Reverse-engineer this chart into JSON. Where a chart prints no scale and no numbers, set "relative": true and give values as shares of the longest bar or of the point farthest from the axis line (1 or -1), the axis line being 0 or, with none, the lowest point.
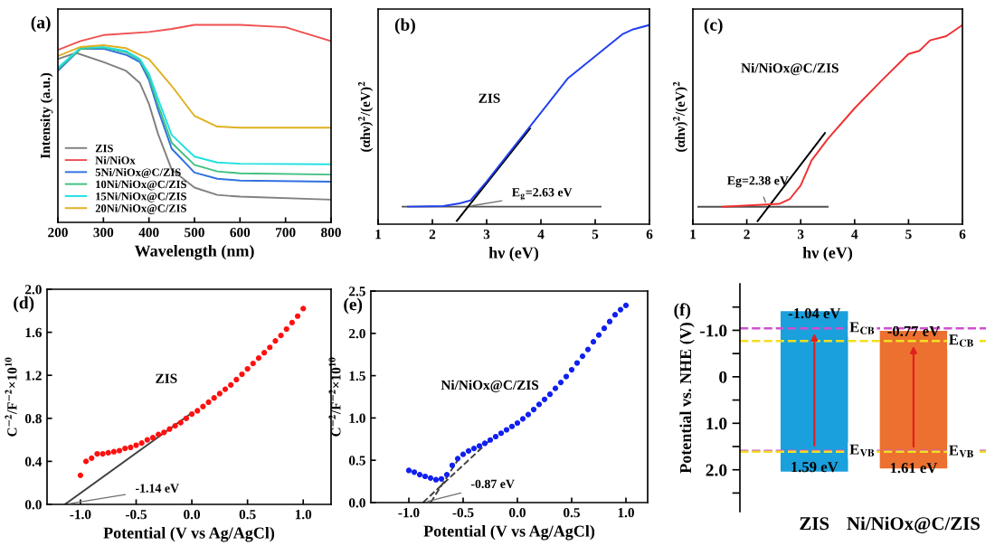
{
  "chart_data": [
    {
      "type": "line",
      "relative": true,
      "xlabel": "Wavelength (nm)",
      "ylabel": "Intensity (a.u.)",
      "xlim": [
        200,
        800
      ],
      "xticks": [
        200,
        300,
        400,
        500,
        600,
        700,
        800
      ],
      "legend": "bottom left",
      "annotations": [
        "(a)"
      ],
      "series": [
        {
          "name": "ZIS",
          "color": "#808080",
          "x": [
            200,
            240,
            300,
            350,
            380,
            400,
            420,
            450,
            500,
            550,
            600,
            800
          ],
          "values": [
            0.827,
            0.858,
            0.812,
            0.767,
            0.706,
            0.6,
            0.448,
            0.267,
            0.176,
            0.139,
            0.13,
            0.115
          ]
        },
        {
          "name": "Ni/NiOx",
          "color": "#f05050",
          "x": [
            200,
            250,
            300,
            400,
            450,
            500,
            600,
            700,
            800
          ],
          "values": [
            0.873,
            0.918,
            0.948,
            0.964,
            0.979,
            1.0,
            1.0,
            0.988,
            0.918
          ]
        },
        {
          "name": "5Ni/NiOx@C/ZIS",
          "color": "#3070e0",
          "x": [
            200,
            250,
            300,
            350,
            380,
            400,
            420,
            450,
            500,
            550,
            600,
            800
          ],
          "values": [
            0.767,
            0.879,
            0.879,
            0.848,
            0.812,
            0.721,
            0.57,
            0.373,
            0.252,
            0.221,
            0.212,
            0.206
          ]
        },
        {
          "name": "10Ni/NiOx@C/ZIS",
          "color": "#40c080",
          "x": [
            200,
            250,
            300,
            350,
            380,
            400,
            420,
            450,
            500,
            550,
            600,
            800
          ],
          "values": [
            0.776,
            0.879,
            0.885,
            0.861,
            0.821,
            0.736,
            0.594,
            0.403,
            0.291,
            0.258,
            0.248,
            0.242
          ]
        },
        {
          "name": "15Ni/NiOx@C/ZIS",
          "color": "#20e0e0",
          "x": [
            200,
            250,
            300,
            350,
            380,
            400,
            420,
            450,
            500,
            550,
            600,
            800
          ],
          "values": [
            0.782,
            0.885,
            0.888,
            0.867,
            0.827,
            0.752,
            0.624,
            0.442,
            0.333,
            0.303,
            0.297,
            0.294
          ]
        },
        {
          "name": "20Ni/NiOx@C/ZIS",
          "color": "#e0b020",
          "x": [
            200,
            250,
            300,
            350,
            400,
            450,
            500,
            550,
            600,
            800
          ],
          "values": [
            0.842,
            0.888,
            0.897,
            0.882,
            0.827,
            0.691,
            0.539,
            0.485,
            0.479,
            0.479
          ]
        }
      ]
    },
    {
      "type": "line",
      "relative": true,
      "xlabel": "hν (eV)",
      "ylabel": "(αhν)$^{2}$/(eV)$^{2}$",
      "xlim": [
        1,
        6
      ],
      "xticks": [
        1,
        2,
        3,
        4,
        5,
        6
      ],
      "annotations": [
        "(b)",
        "ZIS",
        {
          "text": "E$_{g}$=2.63 eV",
          "x": 2.63,
          "y": 0.088
        }
      ],
      "series": [
        {
          "color": "#505050",
          "x": [
            1.45,
            5.1
          ],
          "values": [
            0.088,
            0.088
          ]
        },
        {
          "color": "#000000",
          "x": [
            2.45,
            3.8
          ],
          "values": [
            0.016,
            0.48
          ]
        },
        {
          "color": "#2040f0",
          "x": [
            1.55,
            2.2,
            2.5,
            2.7,
            3.0,
            3.5,
            4.0,
            4.5,
            5.0,
            5.5,
            5.7,
            6.0
          ],
          "values": [
            0.088,
            0.091,
            0.104,
            0.119,
            0.214,
            0.387,
            0.56,
            0.733,
            0.843,
            0.953,
            0.978,
            1.0
          ]
        }
      ]
    },
    {
      "type": "line",
      "relative": true,
      "xlabel": "hν (eV)",
      "ylabel": "(αhν)$^{2}$/(eV)$^{2}$",
      "xlim": [
        1,
        6
      ],
      "xticks": [
        1,
        2,
        3,
        4,
        5,
        6
      ],
      "annotations": [
        "(c)",
        "Ni/NiOx@C/ZIS",
        {
          "text": "Eg=2.38 eV",
          "x": 2.38,
          "y": 0.087
        }
      ],
      "series": [
        {
          "color": "#505050",
          "x": [
            1.1,
            3.5
          ],
          "values": [
            0.087,
            0.087
          ]
        },
        {
          "color": "#000000",
          "x": [
            2.2,
            3.45
          ],
          "values": [
            0.015,
            0.458
          ]
        },
        {
          "color": "#f03030",
          "x": [
            1.55,
            2.2,
            2.6,
            2.8,
            3.0,
            3.2,
            3.5,
            4.0,
            4.5,
            5.0,
            5.2,
            5.4,
            5.7,
            6.0
          ],
          "values": [
            0.087,
            0.096,
            0.102,
            0.127,
            0.195,
            0.319,
            0.427,
            0.582,
            0.721,
            0.854,
            0.87,
            0.923,
            0.944,
            1.0
          ]
        }
      ]
    },
    {
      "type": "scatter",
      "marker": "circle",
      "xlabel": "Potential (V vs Ag/AgCl)",
      "ylabel": "C$^{−2}$/F$^{−2}$×10$^{10}$",
      "xlim": [
        -1.3,
        1.25
      ],
      "xticks": [
        {
          "value": -1.0,
          "label": "-1.0"
        },
        {
          "value": -0.5,
          "label": "-0.5"
        },
        {
          "value": 0,
          "label": "0.0"
        },
        {
          "value": 0.5,
          "label": "0.5"
        },
        {
          "value": 1.0,
          "label": "1.0"
        }
      ],
      "ylim": [
        0,
        2.0
      ],
      "yticks": [
        {
          "value": 0,
          "label": "0.0"
        },
        {
          "value": 0.4,
          "label": "0.4"
        },
        {
          "value": 0.8,
          "label": "0.8"
        },
        {
          "value": 1.2,
          "label": "1.2"
        },
        {
          "value": 1.6,
          "label": "1.6"
        },
        {
          "value": 2.0,
          "label": "2.0"
        }
      ],
      "annotations": [
        "(d)",
        "ZIS",
        {
          "text": "-1.14 eV",
          "x": -1.14,
          "y": 0
        }
      ],
      "series": [
        {
          "type": "line",
          "marker": "none",
          "color": "#404040",
          "x": [
            -1.14,
            0
          ],
          "values": [
            0,
            0.85
          ]
        },
        {
          "color": "#ff1010",
          "x": [
            -1.0,
            -0.95,
            -0.9,
            -0.85,
            -0.8,
            -0.75,
            -0.7,
            -0.65,
            -0.6,
            -0.55,
            -0.5,
            -0.45,
            -0.4,
            -0.35,
            -0.3,
            -0.25,
            -0.2,
            -0.15,
            -0.1,
            -0.05,
            0,
            0.05,
            0.1,
            0.15,
            0.2,
            0.25,
            0.3,
            0.35,
            0.4,
            0.45,
            0.5,
            0.55,
            0.6,
            0.65,
            0.7,
            0.75,
            0.8,
            0.85,
            0.9,
            0.95,
            1.0
          ],
          "values": [
            0.27,
            0.4,
            0.43,
            0.47,
            0.47,
            0.48,
            0.49,
            0.5,
            0.52,
            0.53,
            0.55,
            0.57,
            0.6,
            0.62,
            0.65,
            0.67,
            0.7,
            0.73,
            0.76,
            0.8,
            0.84,
            0.87,
            0.91,
            0.95,
            0.99,
            1.03,
            1.07,
            1.11,
            1.16,
            1.21,
            1.26,
            1.31,
            1.36,
            1.41,
            1.46,
            1.52,
            1.57,
            1.63,
            1.69,
            1.75,
            1.82
          ]
        }
      ]
    },
    {
      "type": "scatter",
      "marker": "circle",
      "xlabel": "Potential (V vs Ag/AgCl)",
      "ylabel": "C$^{−2}$/F$^{−2}$×10$^{10}$",
      "xlim": [
        -1.35,
        1.2
      ],
      "xticks": [
        {
          "value": -1.0,
          "label": "-1.0"
        },
        {
          "value": -0.5,
          "label": "-0.5"
        },
        {
          "value": 0,
          "label": "0.0"
        },
        {
          "value": 0.5,
          "label": "0.5"
        },
        {
          "value": 1.0,
          "label": "1.0"
        }
      ],
      "ylim": [
        0,
        2.5
      ],
      "yticks": [
        {
          "value": 0,
          "label": "0.0"
        },
        {
          "value": 0.5,
          "label": "0.5"
        },
        {
          "value": 1.0,
          "label": "1.0"
        },
        {
          "value": 1.5,
          "label": "1.5"
        },
        {
          "value": 2.0,
          "label": "2.0"
        },
        {
          "value": 2.5,
          "label": "2.5"
        }
      ],
      "annotations": [
        "(e)",
        "Ni/NiOx@C/ZIS",
        {
          "text": "-0.87 eV",
          "x": -0.87,
          "y": 0
        }
      ],
      "series": [
        {
          "type": "line",
          "marker": "none",
          "line_style": "dashed",
          "color": "#404040",
          "x": [
            -0.87,
            -0.25
          ],
          "values": [
            0,
            0.74
          ]
        },
        {
          "type": "line",
          "marker": "none",
          "line_style": "dashed",
          "color": "#404040",
          "x": [
            -0.8,
            -0.55
          ],
          "values": [
            0,
            0.5
          ]
        },
        {
          "color": "#1020f0",
          "x": [
            -1.0,
            -0.95,
            -0.9,
            -0.85,
            -0.8,
            -0.75,
            -0.7,
            -0.65,
            -0.6,
            -0.55,
            -0.5,
            -0.45,
            -0.4,
            -0.35,
            -0.3,
            -0.25,
            -0.2,
            -0.15,
            -0.1,
            -0.05,
            0,
            0.05,
            0.1,
            0.15,
            0.2,
            0.25,
            0.3,
            0.35,
            0.4,
            0.45,
            0.5,
            0.55,
            0.6,
            0.65,
            0.7,
            0.75,
            0.8,
            0.85,
            0.9,
            0.95,
            1.0
          ],
          "values": [
            0.38,
            0.36,
            0.33,
            0.31,
            0.29,
            0.27,
            0.28,
            0.33,
            0.44,
            0.52,
            0.57,
            0.61,
            0.64,
            0.67,
            0.7,
            0.74,
            0.78,
            0.82,
            0.86,
            0.9,
            0.94,
            0.99,
            1.04,
            1.1,
            1.16,
            1.22,
            1.28,
            1.35,
            1.42,
            1.49,
            1.57,
            1.65,
            1.73,
            1.81,
            1.9,
            1.98,
            2.06,
            2.14,
            2.22,
            2.28,
            2.33
          ]
        }
      ]
    },
    {
      "type": "bar",
      "categories": [
        "ZIS",
        "Ni/NiOx@C/ZIS"
      ],
      "base": [
        -1.41,
        -0.99
      ],
      "values": [
        3.45,
        2.96
      ],
      "colors": [
        "#1aa0dc",
        "#ec7030"
      ],
      "ylabel": "Potential vs. NHE (V)",
      "ylim": [
        2.9,
        -2.0
      ],
      "yticks": [
        {
          "value": -1.5,
          "label": null
        },
        {
          "value": -1.0,
          "label": "-1.0"
        },
        {
          "value": -0.5,
          "label": null
        },
        {
          "value": 0,
          "label": "0"
        },
        {
          "value": 0.5,
          "label": null
        },
        {
          "value": 1.0,
          "label": "1.0"
        },
        {
          "value": 1.5,
          "label": null
        },
        {
          "value": 2.0,
          "label": "2.0"
        },
        {
          "value": 2.5,
          "label": null
        }
      ],
      "ref_lines": [
        {
          "axis": "y",
          "value": -1.04,
          "color": "#d050d0",
          "line_style": "dashed"
        },
        {
          "axis": "y",
          "value": 1.59,
          "color": "#d050d0",
          "line_style": "dashed"
        },
        {
          "axis": "y",
          "value": -0.77,
          "color": "#f0e020",
          "line_style": "dashed"
        },
        {
          "axis": "y",
          "value": 1.61,
          "color": "#f0e020",
          "line_style": "dashed"
        }
      ],
      "annotations": [
        "(f)",
        {
          "text": "-1.04 eV",
          "x": "ZIS",
          "y": -1.04
        },
        {
          "text": "1.59 eV",
          "x": "ZIS",
          "y": 1.59
        },
        {
          "text": "-0.77 eV",
          "x": "Ni/NiOx@C/ZIS",
          "y": -0.77
        },
        {
          "text": "1.61 eV",
          "x": "Ni/NiOx@C/ZIS",
          "y": 1.61
        },
        {
          "text": "E$_{CB}$",
          "x": "ZIS",
          "y": -1.04
        },
        {
          "text": "E$_{VB}$",
          "x": "ZIS",
          "y": 1.59
        },
        {
          "text": "E$_{CB}$",
          "x": "Ni/NiOx@C/ZIS",
          "y": -0.77
        },
        {
          "text": "E$_{VB}$",
          "x": "Ni/NiOx@C/ZIS",
          "y": 1.61
        }
      ]
    }
  ]
}
